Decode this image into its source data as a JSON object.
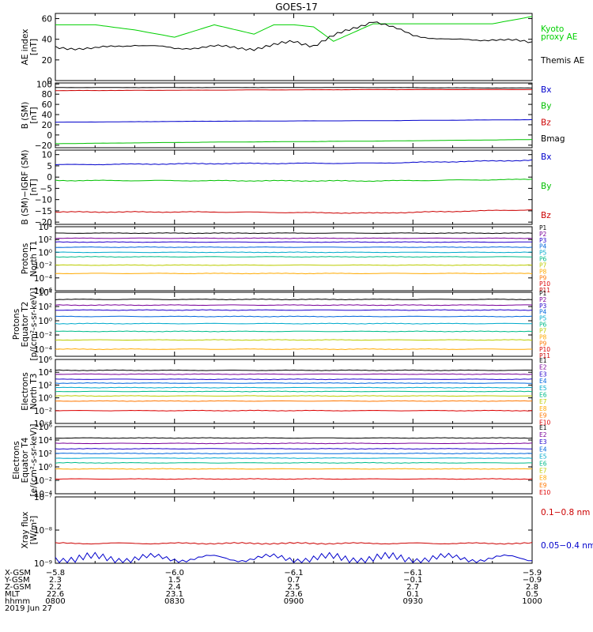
{
  "title": "GOES-17",
  "panels": [
    {
      "id": "ae",
      "ylabel": [
        "AE index",
        "[nT]"
      ],
      "ylim": [
        0,
        65
      ],
      "scale": "linear",
      "yticks": [
        "0",
        "20",
        "40",
        "60"
      ],
      "ytick_values": [
        0,
        20,
        40,
        60
      ],
      "legend": [
        {
          "text": "Kyoto",
          "color": "#00d000"
        },
        {
          "text": "proxy AE",
          "color": "#00d000"
        },
        {
          "text": "Themis AE",
          "color": "#000000"
        }
      ]
    },
    {
      "id": "bsm",
      "ylabel": [
        "B (SM)",
        "[nT]"
      ],
      "ylim": [
        -25,
        102
      ],
      "scale": "linear",
      "yticks": [
        "100",
        "80",
        "60",
        "40",
        "20",
        "0",
        "−20"
      ],
      "ytick_values": [
        100,
        80,
        60,
        40,
        20,
        0,
        -20
      ],
      "legend": [
        {
          "text": "Bx",
          "color": "#0000cc"
        },
        {
          "text": "By",
          "color": "#00c000"
        },
        {
          "text": "Bz",
          "color": "#cc0000"
        },
        {
          "text": "Bmag",
          "color": "#000000"
        }
      ]
    },
    {
      "id": "bigrf",
      "ylabel": [
        "B (SM)−IGRF (SM)",
        "[nT]"
      ],
      "ylim": [
        -21,
        12
      ],
      "scale": "linear",
      "yticks": [
        "10",
        "5",
        "0",
        "−5",
        "−10",
        "−15",
        "−20"
      ],
      "ytick_values": [
        10,
        5,
        0,
        -5,
        -10,
        -15,
        -20
      ],
      "legend": [
        {
          "text": "Bx",
          "color": "#0000cc"
        },
        {
          "text": "By",
          "color": "#00c000"
        },
        {
          "text": "Bz",
          "color": "#cc0000"
        }
      ]
    },
    {
      "id": "pn",
      "ylabel": [
        "Protons",
        "North T1"
      ],
      "ylim": [
        -6,
        4
      ],
      "scale": "log",
      "yticks": [
        "10⁴",
        "10²",
        "10⁰",
        "10⁻²",
        "10⁻⁴",
        "10⁻⁶"
      ],
      "ytick_values": [
        4,
        2,
        0,
        -2,
        -4,
        -6
      ],
      "channels": [
        "P1",
        "P2",
        "P3",
        "P4",
        "P5",
        "P6",
        "P7",
        "P8",
        "P9",
        "P10",
        "P11"
      ]
    },
    {
      "id": "pe",
      "ylabel": [
        "Protons",
        "Equator T2",
        "[p/(cm²-s-sr-keV)]"
      ],
      "ylim": [
        -5,
        4
      ],
      "scale": "log",
      "yticks": [
        "10⁴",
        "10²",
        "10⁰",
        "10⁻²",
        "10⁻⁴"
      ],
      "ytick_values": [
        4,
        2,
        0,
        -2,
        -4
      ],
      "channels": [
        "P1",
        "P2",
        "P3",
        "P4",
        "P5",
        "P6",
        "P7",
        "P8",
        "P9",
        "P10",
        "P11"
      ]
    },
    {
      "id": "en",
      "ylabel": [
        "Electrons",
        "North T3"
      ],
      "ylim": [
        -4,
        6
      ],
      "scale": "log",
      "yticks": [
        "10⁶",
        "10⁴",
        "10²",
        "10⁰",
        "10⁻²",
        "10⁻⁴"
      ],
      "ytick_values": [
        6,
        4,
        2,
        0,
        -2,
        -4
      ],
      "channels": [
        "E1",
        "E2",
        "E3",
        "E4",
        "E5",
        "E6",
        "E7",
        "E8",
        "E9",
        "E10"
      ]
    },
    {
      "id": "ee",
      "ylabel": [
        "Electrons",
        "Equator T4",
        "[e/(cm²-s-sr-keV)]"
      ],
      "ylim": [
        -4,
        6
      ],
      "scale": "log",
      "yticks": [
        "10⁶",
        "10⁴",
        "10²",
        "10⁰",
        "10⁻²",
        "10⁻⁴"
      ],
      "ytick_values": [
        6,
        4,
        2,
        0,
        -2,
        -4
      ],
      "channels": [
        "E1",
        "E2",
        "E3",
        "E4",
        "E5",
        "E6",
        "E7",
        "E8",
        "E9",
        "E10"
      ]
    },
    {
      "id": "xray",
      "ylabel": [
        "Xray flux",
        "[W/m²]"
      ],
      "ylim": [
        -9,
        -7
      ],
      "scale": "log",
      "yticks": [
        "10⁻⁷",
        "10⁻⁸",
        "10⁻⁹"
      ],
      "ytick_values": [
        -7,
        -8,
        -9
      ],
      "legend": [
        {
          "text": "0.1−0.8 nm",
          "color": "#cc0000"
        },
        {
          "text": "0.05−0.4 nm",
          "color": "#0000cc"
        }
      ]
    }
  ],
  "footer": {
    "row_labels": [
      "X-GSM",
      "Y-GSM",
      "Z-GSM",
      "MLT",
      "hhmm"
    ],
    "columns": [
      [
        "−5.8",
        "2.3",
        "2.2",
        "22.6",
        "0800"
      ],
      [
        "−6.0",
        "1.5",
        "2.4",
        "23.1",
        "0830"
      ],
      [
        "−6.1",
        "0.7",
        "2.5",
        "23.6",
        "0900"
      ],
      [
        "−6.1",
        "−0.1",
        "2.7",
        "0.1",
        "0930"
      ],
      [
        "−5.9",
        "−0.9",
        "2.8",
        "0.5",
        "1000"
      ]
    ],
    "date": "2019 Jun 27"
  },
  "chart_data": {
    "type": "line",
    "title": "GOES-17",
    "x_time_range": [
      "0800",
      "1000"
    ],
    "panels": {
      "ae": {
        "x": [
          0,
          10,
          20,
          30,
          40,
          50,
          55,
          60,
          65,
          70,
          80,
          90,
          100,
          110,
          120
        ],
        "series": [
          {
            "name": "Kyoto proxy AE",
            "color": "#00d000",
            "values": [
              54,
              54,
              49,
              42,
              54,
              45,
              54,
              54,
              52,
              38,
              55,
              55,
              55,
              55,
              62
            ]
          },
          {
            "name": "Themis AE",
            "color": "#000000",
            "values": [
              32,
              31,
              35,
              31,
              33,
              31,
              34,
              38,
              34,
              43,
              58,
              44,
              39,
              40,
              37
            ]
          }
        ]
      },
      "bsm": {
        "series": [
          {
            "name": "Bx",
            "color": "#0000cc",
            "values": [
              25,
              27,
              28,
              30
            ]
          },
          {
            "name": "By",
            "color": "#00c000",
            "values": [
              -17,
              -14,
              -12,
              -9
            ]
          },
          {
            "name": "Bz",
            "color": "#cc0000",
            "values": [
              87,
              88,
              89,
              89
            ]
          },
          {
            "name": "Bmag",
            "color": "#000000",
            "values": [
              93,
              93,
              93,
              92
            ]
          }
        ]
      },
      "bigrf": {
        "series": [
          {
            "name": "Bx",
            "color": "#0000cc",
            "values": [
              5.5,
              6,
              6.2,
              7.5
            ]
          },
          {
            "name": "By",
            "color": "#00c000",
            "values": [
              -1.5,
              -1.6,
              -1.7,
              -1
            ]
          },
          {
            "name": "Bz",
            "color": "#cc0000",
            "values": [
              -15.5,
              -15.5,
              -16,
              -14.5
            ]
          }
        ]
      },
      "pn": {
        "series": [
          {
            "name": "P1",
            "color": "#000000",
            "log10": 3.0
          },
          {
            "name": "P2",
            "color": "#7a0099",
            "log10": 2.2
          },
          {
            "name": "P3",
            "color": "#2200cc",
            "log10": 1.6
          },
          {
            "name": "P4",
            "color": "#0066dd",
            "log10": 0.8
          },
          {
            "name": "P5",
            "color": "#00aacc",
            "log10": 0.0
          },
          {
            "name": "P6",
            "color": "#00bb88",
            "log10": -0.7
          },
          {
            "name": "P7",
            "color": "#bbcc00",
            "log10": -2.0
          },
          {
            "name": "P8",
            "color": "#ffaa00",
            "log10": -3.3
          }
        ]
      },
      "pe": {
        "series": [
          {
            "name": "P1",
            "color": "#000000",
            "log10": 3.0
          },
          {
            "name": "P2",
            "color": "#7a0099",
            "log10": 2.2
          },
          {
            "name": "P3",
            "color": "#2200cc",
            "log10": 1.5
          },
          {
            "name": "P4",
            "color": "#0066dd",
            "log10": 0.6
          },
          {
            "name": "P5",
            "color": "#00aacc",
            "log10": -0.4
          },
          {
            "name": "P6",
            "color": "#00bb88",
            "log10": -1.5
          },
          {
            "name": "P7",
            "color": "#bbcc00",
            "log10": -2.7
          },
          {
            "name": "P8",
            "color": "#ffaa00",
            "log10": -4.0
          }
        ]
      },
      "en": {
        "series": [
          {
            "name": "E1",
            "color": "#000000",
            "log10": 4.3
          },
          {
            "name": "E2",
            "color": "#7a0099",
            "log10": 3.7
          },
          {
            "name": "E3",
            "color": "#2200cc",
            "log10": 2.9
          },
          {
            "name": "E4",
            "color": "#0066dd",
            "log10": 2.3
          },
          {
            "name": "E5",
            "color": "#00aacc",
            "log10": 1.6
          },
          {
            "name": "E6",
            "color": "#00bb88",
            "log10": 1.0
          },
          {
            "name": "E7",
            "color": "#bbcc00",
            "log10": 0.3
          },
          {
            "name": "E8",
            "color": "#ff7700",
            "log10": -0.5
          },
          {
            "name": "E9",
            "color": "#dd0000",
            "log10": -2.0
          }
        ]
      },
      "ee": {
        "series": [
          {
            "name": "E1",
            "color": "#000000",
            "log10": 4.3
          },
          {
            "name": "E2",
            "color": "#7a0099",
            "log10": 3.5
          },
          {
            "name": "E3",
            "color": "#2200cc",
            "log10": 2.7
          },
          {
            "name": "E4",
            "color": "#0066dd",
            "log10": 2.0
          },
          {
            "name": "E5",
            "color": "#00aacc",
            "log10": 1.3
          },
          {
            "name": "E6",
            "color": "#00bb88",
            "log10": 0.6
          },
          {
            "name": "E7",
            "color": "#ffaa00",
            "log10": -0.3
          },
          {
            "name": "E8",
            "color": "#dd0000",
            "log10": -1.8
          }
        ]
      },
      "xray": {
        "series": [
          {
            "name": "0.1−0.8 nm",
            "color": "#cc0000",
            "log10": -8.4
          },
          {
            "name": "0.05−0.4 nm",
            "color": "#0000cc",
            "log10": -8.85
          }
        ]
      }
    }
  }
}
